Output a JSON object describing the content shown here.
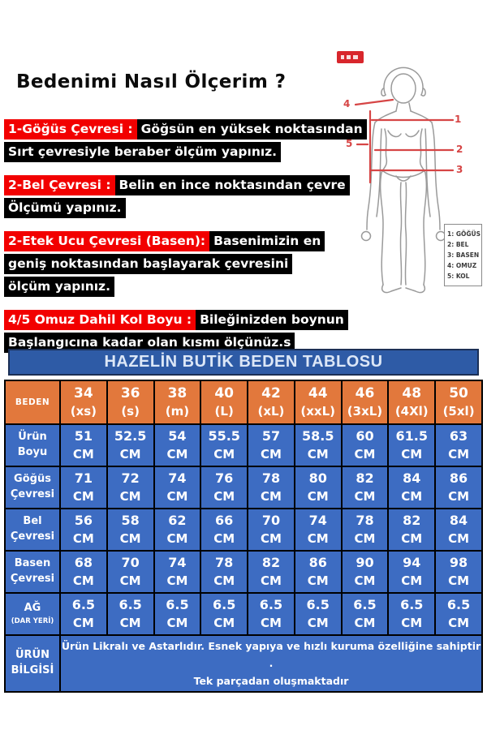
{
  "page": {
    "title": "Bedenimi Nasıl Ölçerim ?"
  },
  "instructions": [
    {
      "label": "1-Göğüs Çevresi :",
      "lines": [
        "Göğsün en yüksek noktasından",
        "Sırt çevresiyle beraber ölçüm yapınız."
      ]
    },
    {
      "label": "2-Bel Çevresi :",
      "lines": [
        "Belin en ince noktasından çevre",
        "Ölçümü yapınız."
      ]
    },
    {
      "label": "2-Etek Ucu Çevresi (Basen):",
      "lines": [
        "Basenimizin en",
        "geniş noktasından başlayarak çevresini",
        "ölçüm yapınız."
      ]
    },
    {
      "label": "4/5 Omuz Dahil Kol Boyu :",
      "lines": [
        "Bileğinizden boynun",
        "Başlangıcına kadar olan kısmı ölçünüz.s"
      ]
    }
  ],
  "figure": {
    "markers": [
      "1",
      "2",
      "3",
      "4",
      "5"
    ],
    "legend": [
      "1: GÖĞÜS",
      "2: BEL",
      "3: BASEN",
      "4: OMUZ",
      "5: KOL"
    ]
  },
  "table_title": "HAZELİN BUTİK BEDEN TABLOSU",
  "size_table": {
    "corner": "BEDEN",
    "columns": [
      {
        "size": "34",
        "label": "(xs)"
      },
      {
        "size": "36",
        "label": "(s)"
      },
      {
        "size": "38",
        "label": "(m)"
      },
      {
        "size": "40",
        "label": "(L)"
      },
      {
        "size": "42",
        "label": "(xL)"
      },
      {
        "size": "44",
        "label": "(xxL)"
      },
      {
        "size": "46",
        "label": "(3xL)"
      },
      {
        "size": "48",
        "label": "(4Xl)"
      },
      {
        "size": "50",
        "label": "(5xl)"
      }
    ],
    "rows": [
      {
        "label": [
          "Ürün",
          "Boyu"
        ],
        "unit": "CM",
        "values": [
          "51",
          "52.5",
          "54",
          "55.5",
          "57",
          "58.5",
          "60",
          "61.5",
          "63"
        ]
      },
      {
        "label": [
          "Göğüs",
          "Çevresi"
        ],
        "unit": "CM",
        "values": [
          "71",
          "72",
          "74",
          "76",
          "78",
          "80",
          "82",
          "84",
          "86"
        ]
      },
      {
        "label": [
          "Bel",
          "Çevresi"
        ],
        "unit": "CM",
        "values": [
          "56",
          "58",
          "62",
          "66",
          "70",
          "74",
          "78",
          "82",
          "84"
        ]
      },
      {
        "label": [
          "Basen",
          "Çevresi"
        ],
        "unit": "CM",
        "values": [
          "68",
          "70",
          "74",
          "78",
          "82",
          "86",
          "90",
          "94",
          "98"
        ]
      },
      {
        "label": [
          "AĞ",
          "(DAR YERİ)"
        ],
        "unit": "CM",
        "values": [
          "6.5",
          "6.5",
          "6.5",
          "6.5",
          "6.5",
          "6.5",
          "6.5",
          "6.5",
          "6.5"
        ]
      }
    ],
    "info": {
      "label": [
        "ÜRÜN",
        "BİLGİSİ"
      ],
      "lines": [
        "Ürün Likralı ve Astarlıdır. Esnek yapıya ve hızlı kuruma özelliğine sahiptir .",
        "Tek parçadan oluşmaktadır"
      ]
    }
  },
  "colors": {
    "red": "#f20000",
    "bar": "#2e5ba6",
    "cell": "#3d6cc2",
    "orange": "#e2783c",
    "figred": "#d64545"
  }
}
